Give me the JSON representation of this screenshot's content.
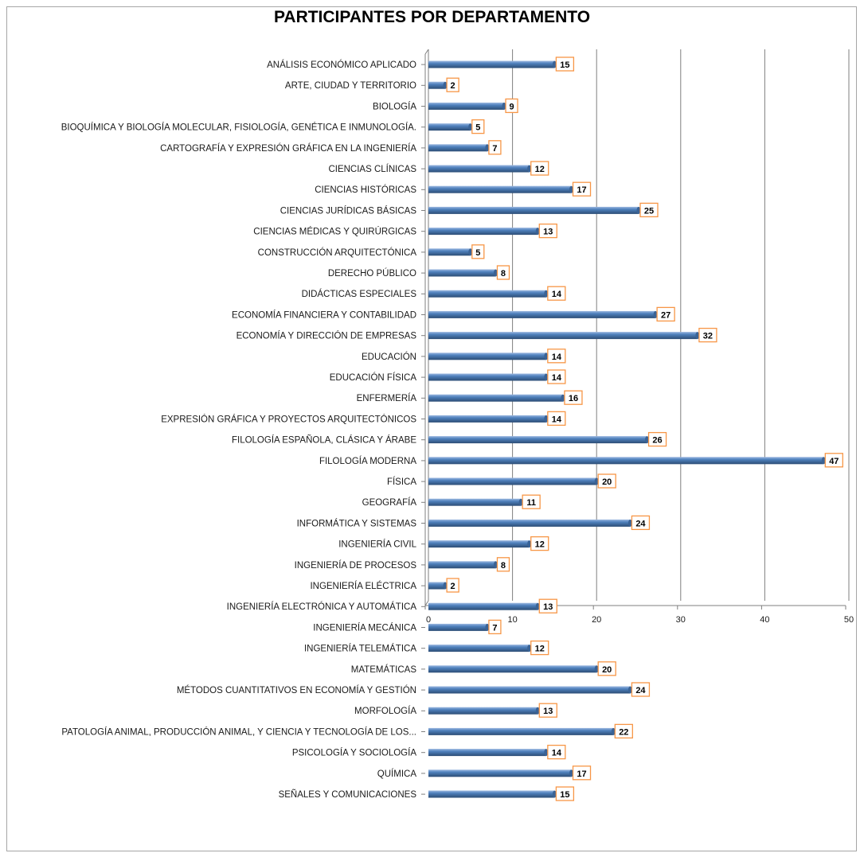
{
  "chart_data": {
    "type": "bar",
    "orientation": "horizontal",
    "title": "PARTICIPANTES POR DEPARTAMENTO",
    "xlabel": "",
    "ylabel": "",
    "xlim": [
      0,
      50
    ],
    "xticks": [
      "0",
      "10",
      "20",
      "30",
      "40",
      "50"
    ],
    "grid": "vertical",
    "legend": "none",
    "bar_color": "#4f81bd",
    "label_border_color": "#f79646",
    "categories": [
      "ANÁLISIS ECONÓMICO APLICADO",
      "ARTE, CIUDAD Y TERRITORIO",
      "BIOLOGÍA",
      "BIOQUÍMICA Y BIOLOGÍA MOLECULAR, FISIOLOGÍA, GENÉTICA E INMUNOLOGÍA.",
      "CARTOGRAFÍA Y EXPRESIÓN GRÁFICA EN LA INGENIERÍA",
      "CIENCIAS CLÍNICAS",
      "CIENCIAS HISTÓRICAS",
      "CIENCIAS JURÍDICAS BÁSICAS",
      "CIENCIAS MÉDICAS Y QUIRÚRGICAS",
      "CONSTRUCCIÓN ARQUITECTÓNICA",
      "DERECHO PÚBLICO",
      "DIDÁCTICAS ESPECIALES",
      "ECONOMÍA FINANCIERA Y CONTABILIDAD",
      "ECONOMÍA Y DIRECCIÓN DE EMPRESAS",
      "EDUCACIÓN",
      "EDUCACIÓN FÍSICA",
      "ENFERMERÍA",
      "EXPRESIÓN GRÁFICA Y PROYECTOS ARQUITECTÓNICOS",
      "FILOLOGÍA ESPAÑOLA, CLÁSICA Y ÁRABE",
      "FILOLOGÍA MODERNA",
      "FÍSICA",
      "GEOGRAFÍA",
      "INFORMÁTICA Y SISTEMAS",
      "INGENIERÍA CIVIL",
      "INGENIERÍA DE PROCESOS",
      "INGENIERÍA ELÉCTRICA",
      "INGENIERÍA ELECTRÓNICA Y AUTOMÁTICA",
      "INGENIERÍA MECÁNICA",
      "INGENIERÍA TELEMÁTICA",
      "MATEMÁTICAS",
      "MÉTODOS CUANTITATIVOS EN ECONOMÍA Y GESTIÓN",
      "MORFOLOGÍA",
      "PATOLOGÍA ANIMAL, PRODUCCIÓN ANIMAL,  Y CIENCIA Y TECNOLOGÍA DE LOS...",
      "PSICOLOGÍA Y SOCIOLOGÍA",
      "QUÍMICA",
      "SEÑALES Y COMUNICACIONES"
    ],
    "values": [
      15,
      2,
      9,
      5,
      7,
      12,
      17,
      25,
      13,
      5,
      8,
      14,
      27,
      32,
      14,
      14,
      16,
      14,
      26,
      47,
      20,
      11,
      24,
      12,
      8,
      2,
      13,
      7,
      12,
      20,
      24,
      13,
      22,
      14,
      17,
      15
    ]
  }
}
